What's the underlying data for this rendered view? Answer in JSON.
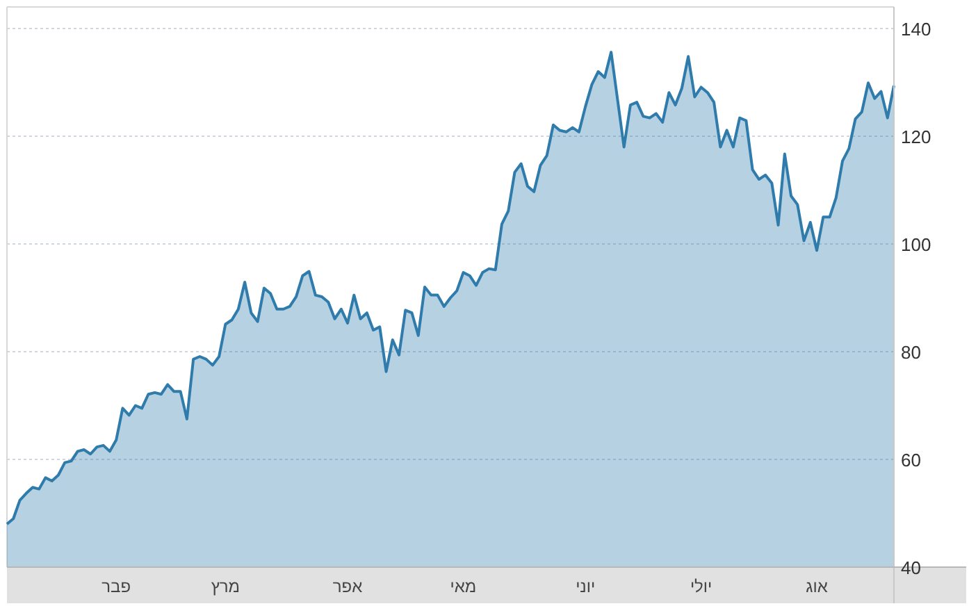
{
  "chart_data": {
    "type": "area",
    "grid": "y",
    "categories": [
      null,
      null,
      null,
      null,
      null,
      null,
      null,
      null,
      null,
      null,
      null,
      null,
      null,
      null,
      null,
      null,
      null,
      "פבר",
      null,
      null,
      null,
      null,
      null,
      null,
      null,
      null,
      null,
      null,
      null,
      null,
      null,
      null,
      null,
      null,
      "מרץ",
      null,
      null,
      null,
      null,
      null,
      null,
      null,
      null,
      null,
      null,
      null,
      null,
      null,
      null,
      null,
      null,
      null,
      null,
      "אפר",
      null,
      null,
      null,
      null,
      null,
      null,
      null,
      null,
      null,
      null,
      null,
      null,
      null,
      null,
      null,
      null,
      null,
      "מאי",
      null,
      null,
      null,
      null,
      null,
      null,
      null,
      null,
      null,
      null,
      null,
      null,
      null,
      null,
      null,
      null,
      null,
      null,
      "יוני",
      null,
      null,
      null,
      null,
      null,
      null,
      null,
      null,
      null,
      null,
      null,
      null,
      null,
      null,
      null,
      null,
      null,
      "יולי",
      null,
      null,
      null,
      null,
      null,
      null,
      null,
      null,
      null,
      null,
      null,
      null,
      null,
      null,
      null,
      null,
      null,
      "אוג",
      null,
      null,
      null,
      null,
      null,
      null,
      null,
      null,
      null,
      null,
      null,
      null
    ],
    "series": [
      {
        "color": "#2f7bab",
        "values": [
          48,
          49,
          52.4,
          53.7,
          54.8,
          54.5,
          56.6,
          56,
          57.1,
          59.4,
          59.7,
          61.5,
          61.8,
          61,
          62.3,
          62.6,
          61.5,
          63.6,
          69.5,
          68.2,
          70,
          69.5,
          72.1,
          72.4,
          72.1,
          73.9,
          72.6,
          72.6,
          67.5,
          78.6,
          79.1,
          78.6,
          77.5,
          79.1,
          85.1,
          85.9,
          87.9,
          92.9,
          87.2,
          85.6,
          91.8,
          90.8,
          87.9,
          87.9,
          88.4,
          90.2,
          94.1,
          94.9,
          90.5,
          90.2,
          89.2,
          86.1,
          87.9,
          85.3,
          90.5,
          86.1,
          87.2,
          84,
          84.6,
          76.3,
          82.2,
          79.4,
          87.7,
          87.2,
          83,
          92,
          90.5,
          90.5,
          88.4,
          90,
          91.3,
          94.7,
          94.1,
          92.3,
          94.7,
          95.4,
          95.2,
          103.7,
          106.1,
          113.3,
          114.9,
          110.7,
          109.7,
          114.6,
          116.4,
          122.1,
          121.1,
          120.8,
          121.6,
          120.8,
          125.5,
          129.6,
          132,
          130.9,
          135.6,
          126.8,
          118,
          125.8,
          126.3,
          123.7,
          123.4,
          124.2,
          122.6,
          128.1,
          125.8,
          128.9,
          134.8,
          127.3,
          129.1,
          128.1,
          126.3,
          118,
          121.1,
          118,
          123.4,
          122.9,
          113.8,
          112,
          112.8,
          111.3,
          103.5,
          116.7,
          108.9,
          107.3,
          100.6,
          104,
          98.8,
          105,
          105,
          108.6,
          115.4,
          117.7,
          123.2,
          124.5,
          129.9,
          127,
          128.3,
          123.4,
          129.4
        ]
      }
    ],
    "ylim": [
      40,
      144
    ],
    "yticks": [
      40,
      60,
      80,
      100,
      120,
      140
    ]
  }
}
